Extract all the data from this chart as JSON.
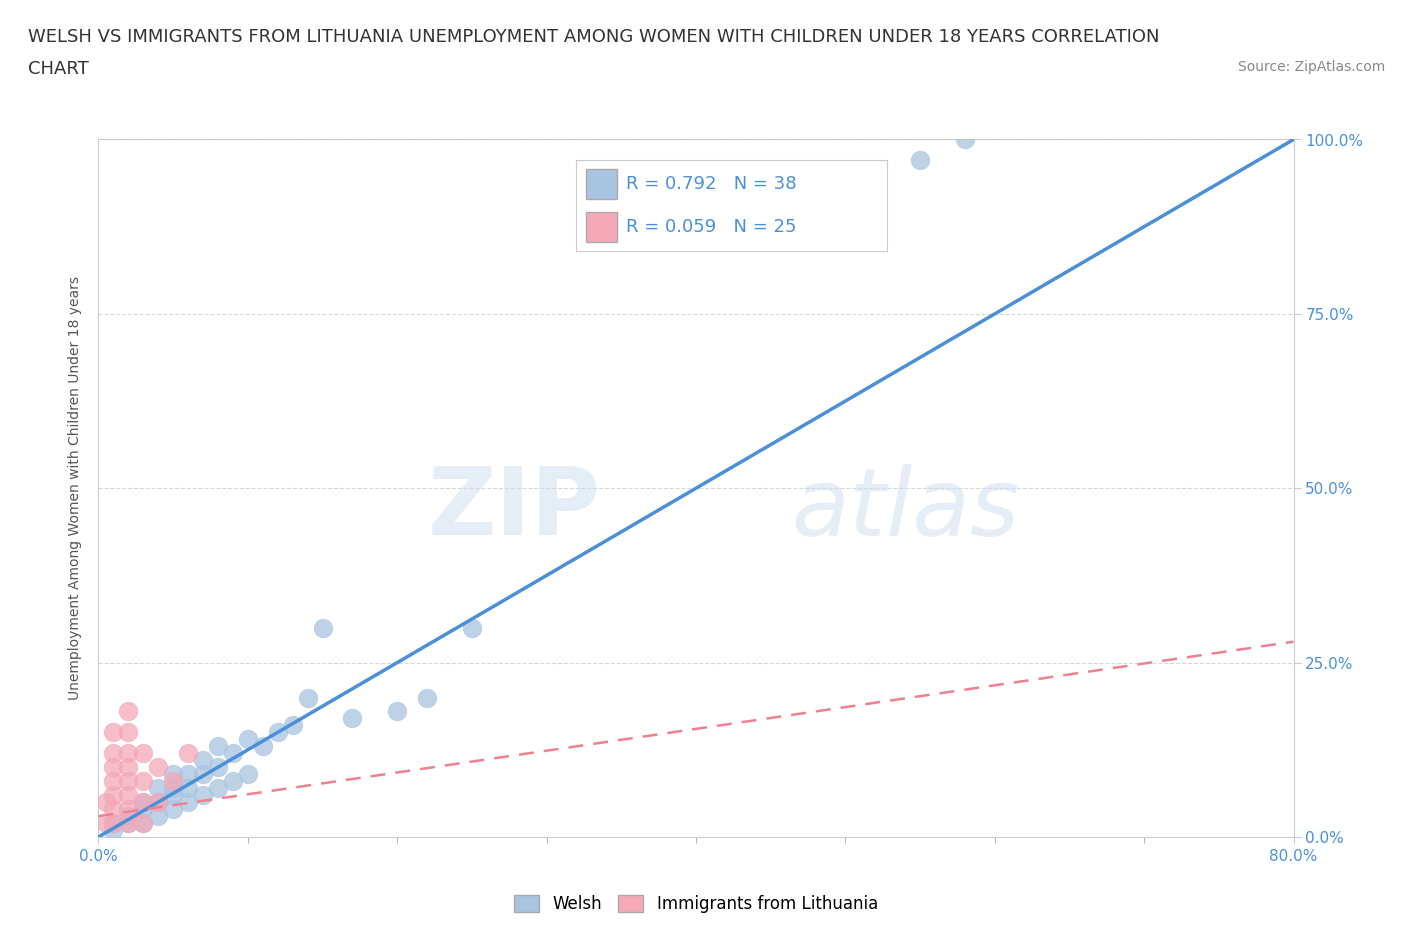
{
  "title_line1": "WELSH VS IMMIGRANTS FROM LITHUANIA UNEMPLOYMENT AMONG WOMEN WITH CHILDREN UNDER 18 YEARS CORRELATION",
  "title_line2": "CHART",
  "source": "Source: ZipAtlas.com",
  "ylabel": "Unemployment Among Women with Children Under 18 years",
  "ytick_labels": [
    "0.0%",
    "25.0%",
    "50.0%",
    "75.0%",
    "100.0%"
  ],
  "ytick_values": [
    0,
    25,
    50,
    75,
    100
  ],
  "xlim": [
    0,
    80
  ],
  "ylim": [
    0,
    100
  ],
  "welsh_R": 0.792,
  "welsh_N": 38,
  "lithuania_R": 0.059,
  "lithuania_N": 25,
  "welsh_color": "#a8c4e0",
  "lithuania_color": "#f4a8b8",
  "regression_welsh_color": "#4a90d9",
  "regression_lithuania_color": "#f08090",
  "background_color": "#ffffff",
  "grid_color": "#d8d8d8",
  "watermark_zip": "ZIP",
  "watermark_atlas": "atlas",
  "legend_label_welsh": "Welsh",
  "legend_label_lithuania": "Immigrants from Lithuania",
  "welsh_x": [
    1,
    1,
    2,
    2,
    3,
    3,
    3,
    4,
    4,
    4,
    5,
    5,
    5,
    5,
    6,
    6,
    6,
    7,
    7,
    7,
    8,
    8,
    8,
    9,
    9,
    10,
    10,
    11,
    12,
    13,
    14,
    15,
    17,
    20,
    22,
    25,
    55,
    58
  ],
  "welsh_y": [
    1,
    2,
    2,
    3,
    2,
    4,
    5,
    3,
    5,
    7,
    4,
    6,
    7,
    9,
    5,
    7,
    9,
    6,
    9,
    11,
    7,
    10,
    13,
    8,
    12,
    9,
    14,
    13,
    15,
    16,
    20,
    30,
    17,
    18,
    20,
    30,
    97,
    100
  ],
  "lithuania_x": [
    0.5,
    0.5,
    1,
    1,
    1,
    1,
    1,
    1,
    1,
    2,
    2,
    2,
    2,
    2,
    2,
    2,
    2,
    3,
    3,
    3,
    3,
    4,
    4,
    5,
    6
  ],
  "lithuania_y": [
    2,
    5,
    2,
    4,
    6,
    8,
    10,
    12,
    15,
    2,
    4,
    6,
    8,
    10,
    12,
    15,
    18,
    2,
    5,
    8,
    12,
    5,
    10,
    8,
    12
  ],
  "title_fontsize": 13,
  "source_fontsize": 10,
  "tick_fontsize": 11,
  "ylabel_fontsize": 10,
  "legend_fontsize": 12,
  "corr_fontsize": 13
}
